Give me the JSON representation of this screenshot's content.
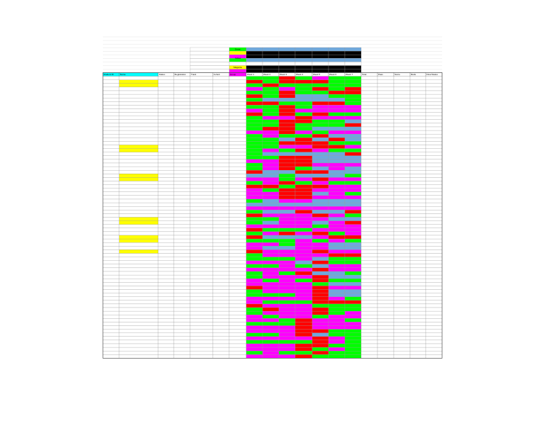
{
  "sheet": {
    "header": [
      "Student ID",
      "Name",
      "Status",
      "Registration",
      "Track",
      "Cohort",
      "Group",
      "Week 1",
      "Week 2",
      "Week 3",
      "Week 4",
      "Week 5",
      "Week 6",
      "Week 7",
      "Total",
      "Pass",
      "Score",
      "Rank",
      "Final Status"
    ],
    "summary_labels": [
      "Green",
      "Yellow",
      "Magenta"
    ],
    "palette": {
      "g": "#00ff00",
      "m": "#ff00ff",
      "r": "#ff0000",
      "b": "#6fa8dc",
      "y": "#ffff00",
      "c": "#00ffff",
      "k": "#000000",
      "w": "#ffffff"
    },
    "top_block": [
      "gbbbbbbb",
      "ykkkkkkk",
      "mkkkkkkk",
      "gbbbbbbb",
      "wwwwwwww",
      "ykkkkkkk",
      "mkkkkkkk"
    ],
    "header_colors": "ccwwwwmwwwwwwwwwwww",
    "highlight_rows": [
      1,
      2,
      19,
      20,
      27,
      28,
      39,
      40,
      44,
      45,
      48
    ],
    "rows": [
      "ggrgmgg",
      "rgrrrgg",
      "grggggg",
      "mgmgrgr",
      "ggrggrr",
      "rgrbbgg",
      "gbbbbbg",
      "rrggrrg",
      "ggrgmmm",
      "mgrmmmm",
      "rgrgrgg",
      "gmmrmmm",
      "ggrrggb",
      "ggrgggr",
      "grrgbbb",
      "mmrmgmm",
      "gmggrbb",
      "ggbrbrb",
      "ggrrrgg",
      "ggmmrrm",
      "gmgrmgg",
      "gbbbbbr",
      "ggrrbbb",
      "mmrrbbb",
      "gmrrmmm",
      "gmrgbmb",
      "rbbrrbb",
      "bbgbbbg",
      "mmgmrmm",
      "gmrgmgg",
      "rrgrrmm",
      "mgrrmmm",
      "mmrrbmg",
      "mmrrmmm",
      "gbmmbbb",
      "bbbbbbb",
      "mmmmmmm",
      "gbbrbbr",
      "rmmmrmg",
      "ggmmmbb",
      "gbmmbmr",
      "mmmmgmm",
      "rgggmmm",
      "gmrmrgm",
      "rbbbmrr",
      "gggmgmg",
      "mmgmmbb",
      "mbbmmbb",
      "rmmmrmm",
      "gmmmmrr",
      "gggmbgg",
      "mmmbrgg",
      "ggmgbmm",
      "mmmmrmm",
      "gmgrbbg",
      "gmmmrbb",
      "mgmgrgg",
      "mmmmgbb",
      "rmmmrmm",
      "gmmmrbb",
      "gggmrbb",
      "mmmmrmg",
      "mgggrrr",
      "rmmmggg",
      "grmmrgg",
      "gmmmrgm",
      "mgmmgmm",
      "mmgrmmg",
      "gggrmmm",
      "mmmrmmm",
      "mmmrrgg",
      "ggmrbgg",
      "mmmmrmg",
      "ggggrmg",
      "mmmrrgg",
      "mmmrgmg",
      "gmggrgg",
      "mmmrggg"
    ]
  }
}
